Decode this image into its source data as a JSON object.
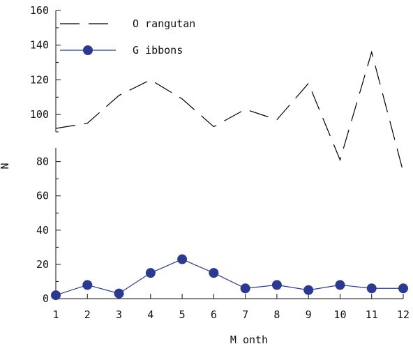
{
  "chart_data": {
    "type": "line",
    "xlabel": "M onth",
    "ylabel": "N",
    "x": [
      1,
      2,
      3,
      4,
      5,
      6,
      7,
      8,
      9,
      10,
      11,
      12
    ],
    "xlim": [
      1,
      12
    ],
    "ylim": [
      0,
      160
    ],
    "y_axis_break": [
      88,
      90
    ],
    "y_ticks": [
      0,
      20,
      40,
      60,
      80,
      100,
      120,
      140,
      160
    ],
    "grid": false,
    "legend_position": "top-left",
    "series": [
      {
        "name": "O rangutan",
        "style": "dashed",
        "color": "#000000",
        "values": [
          92,
          95,
          111,
          120,
          109,
          93,
          103,
          97,
          118,
          81,
          136,
          74
        ]
      },
      {
        "name": "G ibbons",
        "style": "solid-markers",
        "color": "#2b3990",
        "values": [
          2,
          8,
          3,
          15,
          23,
          15,
          6,
          8,
          5,
          8,
          6,
          6
        ]
      }
    ]
  }
}
